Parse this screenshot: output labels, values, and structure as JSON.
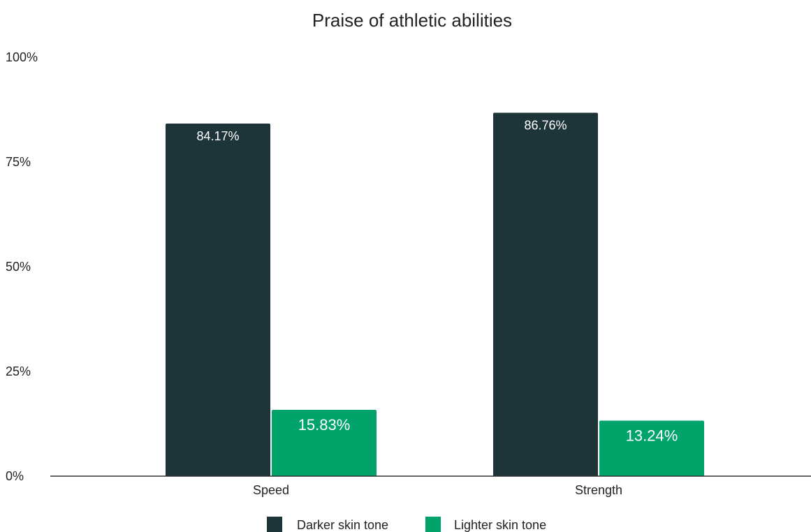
{
  "chart_data": {
    "type": "bar",
    "title": "Praise of athletic abilities",
    "xlabel": "",
    "ylabel": "",
    "categories": [
      "Speed",
      "Strength"
    ],
    "series": [
      {
        "name": "Darker skin tone",
        "color": "#1d3439",
        "values": [
          84.17,
          86.76
        ],
        "labels": [
          "84.17%",
          "86.76%"
        ]
      },
      {
        "name": "Lighter skin tone",
        "color": "#00a36a",
        "values": [
          15.83,
          13.24
        ],
        "labels": [
          "15.83%",
          "13.24%"
        ]
      }
    ],
    "ylim": [
      0,
      100
    ],
    "yticks": [
      0,
      25,
      50,
      75,
      100
    ],
    "ytick_labels": [
      "0%",
      "25%",
      "50%",
      "75%",
      "100%"
    ],
    "grid": false,
    "legend_position": "bottom"
  }
}
